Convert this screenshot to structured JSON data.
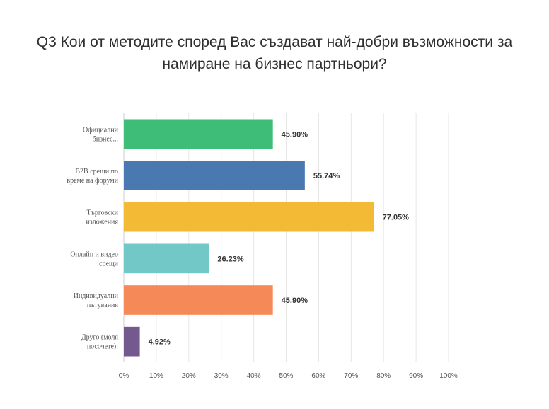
{
  "title_lines": [
    "Q3 Кои от методите според Вас създават най-добри възможности за",
    "намиране на бизнес партньори?"
  ],
  "chart_data": {
    "type": "bar",
    "orientation": "horizontal",
    "categories": [
      [
        "Официални",
        "бизнес..."
      ],
      [
        "B2B срещи по",
        "време на форуми"
      ],
      [
        "Търговски",
        "изложения"
      ],
      [
        "Онлайн и видео",
        "срещи"
      ],
      [
        "Индивидуални",
        "пътувания"
      ],
      [
        "Друго (моля",
        "посочете):"
      ]
    ],
    "values": [
      45.9,
      55.74,
      77.05,
      26.23,
      45.9,
      4.92
    ],
    "data_labels": [
      "45.90%",
      "55.74%",
      "77.05%",
      "26.23%",
      "45.90%",
      "4.92%"
    ],
    "colors": [
      "#3dbd77",
      "#4a78b0",
      "#f3bb35",
      "#72c8c6",
      "#f58a58",
      "#74598f"
    ],
    "xlim": [
      0,
      100
    ],
    "xticks": [
      "0%",
      "10%",
      "20%",
      "30%",
      "40%",
      "50%",
      "60%",
      "70%",
      "80%",
      "90%",
      "100%"
    ],
    "grid": true
  }
}
